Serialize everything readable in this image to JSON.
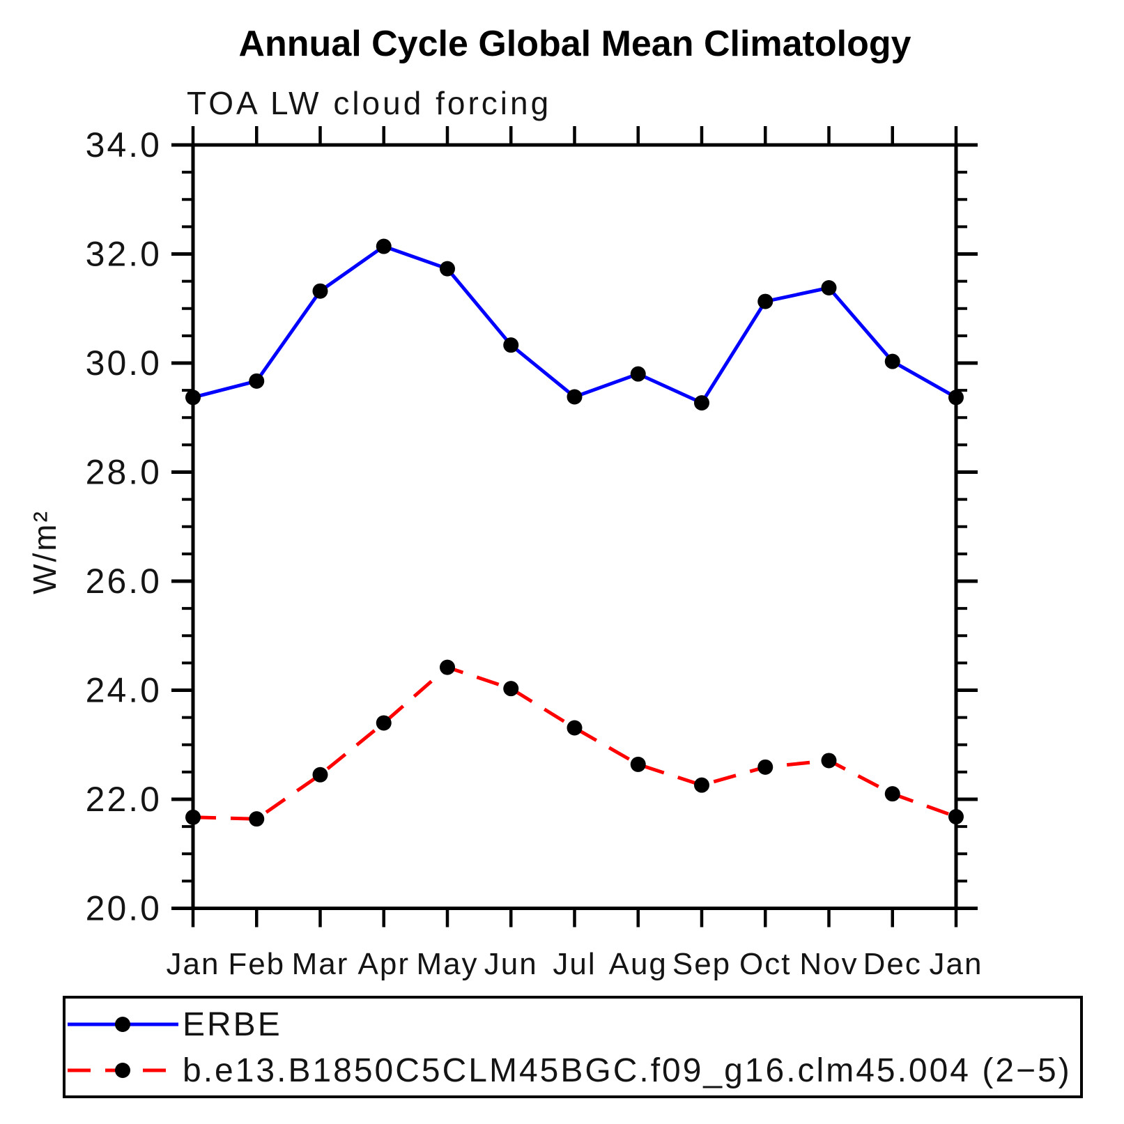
{
  "chart_data": {
    "type": "line",
    "title": "Annual Cycle Global Mean Climatology",
    "subtitle": "TOA LW cloud forcing",
    "ylabel": "W/m²",
    "xlabel": "",
    "categories": [
      "Jan",
      "Feb",
      "Mar",
      "Apr",
      "May",
      "Jun",
      "Jul",
      "Aug",
      "Sep",
      "Oct",
      "Nov",
      "Dec",
      "Jan"
    ],
    "series": [
      {
        "name": "ERBE",
        "line_color": "#0000ff",
        "line_style": "solid",
        "marker": "circle",
        "marker_color": "#000000",
        "values": [
          29.37,
          29.67,
          31.32,
          32.14,
          31.73,
          30.33,
          29.38,
          29.8,
          29.27,
          31.13,
          31.38,
          30.03,
          29.37
        ]
      },
      {
        "name": "b.e13.B1850C5CLM45BGC.f09_g16.clm45.004 (2−5)",
        "line_color": "#ff0000",
        "line_style": "dashed",
        "marker": "circle",
        "marker_color": "#000000",
        "values": [
          21.67,
          21.64,
          22.45,
          23.4,
          24.42,
          24.03,
          23.31,
          22.64,
          22.26,
          22.59,
          22.71,
          22.1,
          21.68
        ]
      }
    ],
    "ylim": [
      20.0,
      34.0
    ],
    "ytick_major_step": 2.0,
    "ytick_minor_step": 0.5,
    "ytick_labels": [
      "34.0",
      "32.0",
      "30.0",
      "28.0",
      "26.0",
      "24.0",
      "22.0",
      "20.0"
    ],
    "grid": "off",
    "legend_position": "bottom-box",
    "axis_color": "#000000",
    "background_color": "#ffffff"
  }
}
